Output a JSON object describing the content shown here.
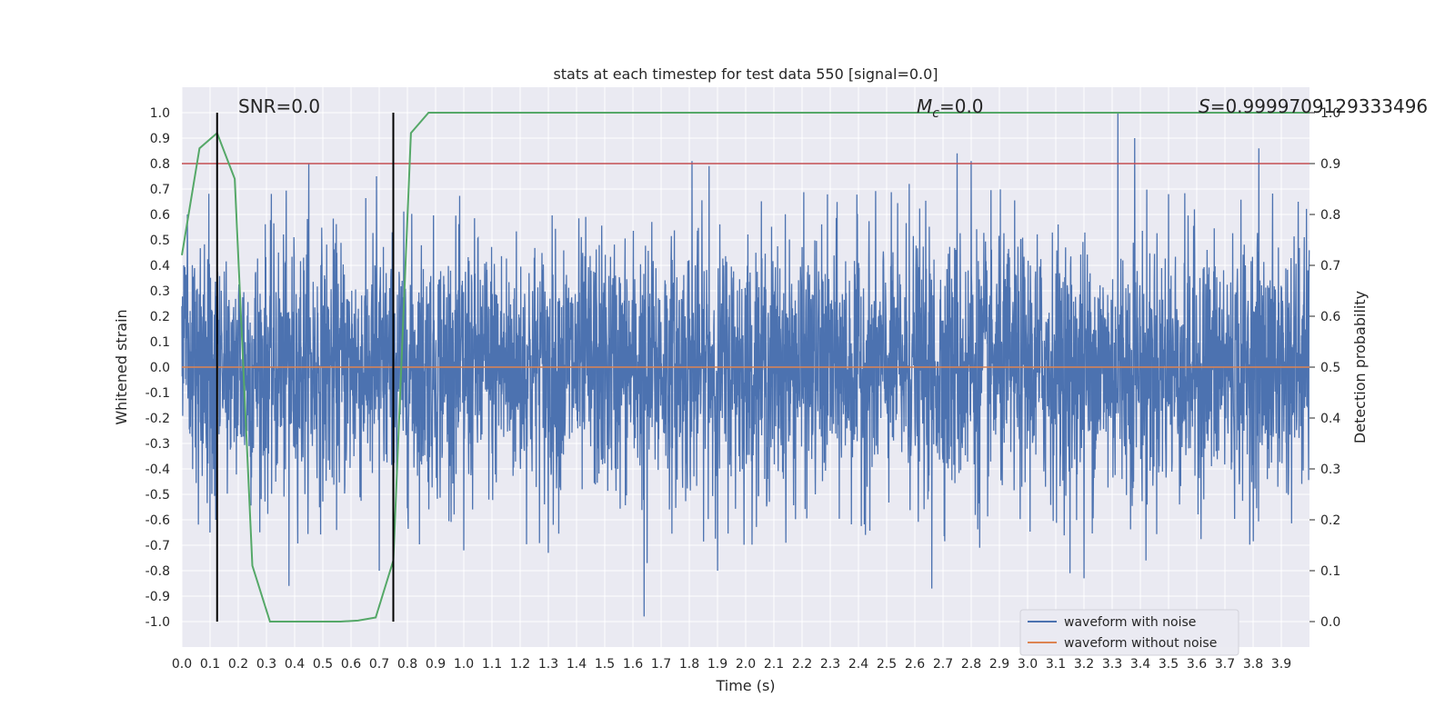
{
  "chart_data": {
    "type": "line",
    "title": "stats at each timestep for test data 550 [signal=0.0]",
    "xlabel": "Time (s)",
    "ylabel": "Whitened strain",
    "y2label": "Detection probability",
    "xlim": [
      0.0,
      4.0
    ],
    "ylim": [
      -1.1,
      1.1
    ],
    "y2lim": [
      -0.05,
      1.05
    ],
    "x_ticks": [
      "0.0",
      "0.1",
      "0.2",
      "0.3",
      "0.4",
      "0.5",
      "0.6",
      "0.7",
      "0.8",
      "0.9",
      "1.0",
      "1.1",
      "1.2",
      "1.3",
      "1.4",
      "1.5",
      "1.6",
      "1.7",
      "1.8",
      "1.9",
      "2.0",
      "2.1",
      "2.2",
      "2.3",
      "2.4",
      "2.5",
      "2.6",
      "2.7",
      "2.8",
      "2.9",
      "3.0",
      "3.1",
      "3.2",
      "3.3",
      "3.4",
      "3.5",
      "3.6",
      "3.7",
      "3.8",
      "3.9"
    ],
    "y_ticks": [
      "1.0",
      "0.9",
      "0.8",
      "0.7",
      "0.6",
      "0.5",
      "0.4",
      "0.3",
      "0.2",
      "0.1",
      "0.0",
      "-0.1",
      "-0.2",
      "-0.3",
      "-0.4",
      "-0.5",
      "-0.6",
      "-0.7",
      "-0.8",
      "-0.9",
      "-1.0"
    ],
    "y2_ticks": [
      "1.0",
      "0.9",
      "0.8",
      "0.7",
      "0.6",
      "0.5",
      "0.4",
      "0.3",
      "0.2",
      "0.1",
      "0.0"
    ],
    "grid": true,
    "legend_position": "lower-right",
    "annotations": {
      "snr": "SNR=0.0",
      "mc_symbol": "M",
      "mc_sub": "c",
      "mc_value": "=0.0",
      "s_symbol": "S",
      "s_value": "=0.9999709129333496"
    },
    "threshold": {
      "y2": 0.9,
      "color": "#c44e52"
    },
    "vertical_lines": [
      0.125,
      0.75
    ],
    "series": [
      {
        "name": "waveform with noise",
        "color": "#4c72b0",
        "kind": "noise",
        "sample_rate": 1024,
        "std": 0.25,
        "peaks": [
          {
            "x": 0.02,
            "y": 0.6
          },
          {
            "x": 0.1,
            "y": -0.65
          },
          {
            "x": 0.12,
            "y": -0.6
          },
          {
            "x": 0.45,
            "y": 0.8
          },
          {
            "x": 0.38,
            "y": -0.86
          },
          {
            "x": 0.69,
            "y": 0.75
          },
          {
            "x": 0.7,
            "y": -0.8
          },
          {
            "x": 1.0,
            "y": -0.72
          },
          {
            "x": 1.3,
            "y": -0.73
          },
          {
            "x": 1.64,
            "y": -0.98
          },
          {
            "x": 1.65,
            "y": -0.77
          },
          {
            "x": 1.81,
            "y": 0.81
          },
          {
            "x": 1.87,
            "y": 0.79
          },
          {
            "x": 1.9,
            "y": -0.8
          },
          {
            "x": 2.58,
            "y": 0.72
          },
          {
            "x": 2.66,
            "y": -0.87
          },
          {
            "x": 2.75,
            "y": 0.84
          },
          {
            "x": 2.8,
            "y": 0.81
          },
          {
            "x": 2.83,
            "y": -0.71
          },
          {
            "x": 3.15,
            "y": -0.81
          },
          {
            "x": 3.2,
            "y": -0.83
          },
          {
            "x": 3.32,
            "y": 1.0
          },
          {
            "x": 3.38,
            "y": 0.9
          },
          {
            "x": 3.42,
            "y": -0.76
          },
          {
            "x": 3.5,
            "y": 0.68
          },
          {
            "x": 3.82,
            "y": 0.86
          },
          {
            "x": 3.96,
            "y": 0.65
          }
        ]
      },
      {
        "name": "waveform without noise",
        "color": "#dd8452",
        "kind": "flat",
        "value": 0.0
      },
      {
        "name": "detection probability",
        "color": "#55a868",
        "axis": "y2",
        "x": [
          0.0,
          0.0625,
          0.125,
          0.1875,
          0.25,
          0.3125,
          0.375,
          0.4375,
          0.5,
          0.5625,
          0.625,
          0.6875,
          0.75,
          0.8125,
          0.875,
          0.9375,
          1.0,
          4.0
        ],
        "values": [
          0.72,
          0.93,
          0.96,
          0.87,
          0.11,
          0.0,
          0.0,
          0.0,
          0.0,
          0.0,
          0.002,
          0.008,
          0.12,
          0.96,
          1.0,
          1.0,
          1.0,
          1.0
        ]
      }
    ]
  }
}
